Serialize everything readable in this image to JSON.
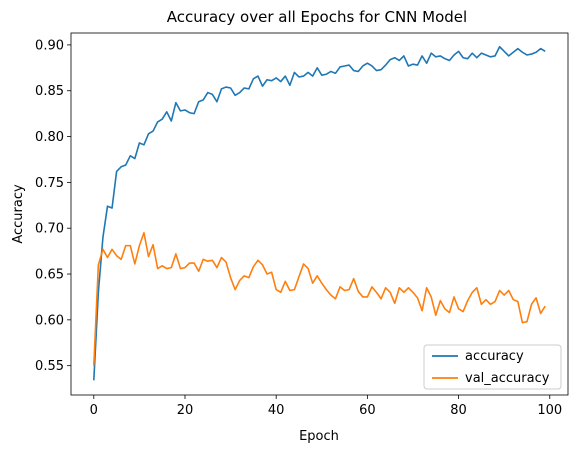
{
  "chart_data": {
    "type": "line",
    "title": "Accuracy over all Epochs for CNN Model",
    "xlabel": "Epoch",
    "ylabel": "Accuracy",
    "xlim": [
      -5,
      104
    ],
    "ylim": [
      0.518,
      0.913
    ],
    "xticks": [
      0,
      20,
      40,
      60,
      80,
      100
    ],
    "yticks": [
      0.55,
      0.6,
      0.65,
      0.7,
      0.75,
      0.8,
      0.85,
      0.9
    ],
    "ytick_labels": [
      "0.55",
      "0.60",
      "0.65",
      "0.70",
      "0.75",
      "0.80",
      "0.85",
      "0.90"
    ],
    "grid": false,
    "legend_position": "bottom-right",
    "x": [
      0,
      1,
      2,
      3,
      4,
      5,
      6,
      7,
      8,
      9,
      10,
      11,
      12,
      13,
      14,
      15,
      16,
      17,
      18,
      19,
      20,
      21,
      22,
      23,
      24,
      25,
      26,
      27,
      28,
      29,
      30,
      31,
      32,
      33,
      34,
      35,
      36,
      37,
      38,
      39,
      40,
      41,
      42,
      43,
      44,
      45,
      46,
      47,
      48,
      49,
      50,
      51,
      52,
      53,
      54,
      55,
      56,
      57,
      58,
      59,
      60,
      61,
      62,
      63,
      64,
      65,
      66,
      67,
      68,
      69,
      70,
      71,
      72,
      73,
      74,
      75,
      76,
      77,
      78,
      79,
      80,
      81,
      82,
      83,
      84,
      85,
      86,
      87,
      88,
      89,
      90,
      91,
      92,
      93,
      94,
      95,
      96,
      97,
      98,
      99
    ],
    "series": [
      {
        "name": "accuracy",
        "color": "#1f77b4",
        "values": [
          0.534,
          0.63,
          0.69,
          0.724,
          0.722,
          0.762,
          0.767,
          0.769,
          0.779,
          0.776,
          0.793,
          0.791,
          0.803,
          0.806,
          0.816,
          0.819,
          0.827,
          0.817,
          0.837,
          0.828,
          0.829,
          0.826,
          0.825,
          0.838,
          0.84,
          0.848,
          0.846,
          0.838,
          0.852,
          0.854,
          0.853,
          0.845,
          0.848,
          0.853,
          0.852,
          0.863,
          0.866,
          0.855,
          0.862,
          0.861,
          0.864,
          0.86,
          0.866,
          0.856,
          0.87,
          0.865,
          0.866,
          0.87,
          0.866,
          0.875,
          0.867,
          0.868,
          0.871,
          0.869,
          0.876,
          0.877,
          0.878,
          0.872,
          0.871,
          0.877,
          0.88,
          0.877,
          0.872,
          0.873,
          0.878,
          0.884,
          0.886,
          0.883,
          0.888,
          0.877,
          0.879,
          0.878,
          0.888,
          0.88,
          0.891,
          0.887,
          0.888,
          0.885,
          0.883,
          0.889,
          0.893,
          0.886,
          0.885,
          0.891,
          0.886,
          0.891,
          0.889,
          0.887,
          0.888,
          0.898,
          0.893,
          0.888,
          0.892,
          0.896,
          0.892,
          0.889,
          0.89,
          0.892,
          0.896,
          0.893
        ]
      },
      {
        "name": "val_accuracy",
        "color": "#ff7f0e",
        "values": [
          0.55,
          0.66,
          0.677,
          0.668,
          0.677,
          0.67,
          0.666,
          0.681,
          0.681,
          0.661,
          0.681,
          0.695,
          0.669,
          0.682,
          0.656,
          0.659,
          0.656,
          0.657,
          0.672,
          0.656,
          0.657,
          0.662,
          0.662,
          0.653,
          0.666,
          0.664,
          0.665,
          0.657,
          0.668,
          0.663,
          0.646,
          0.633,
          0.643,
          0.648,
          0.646,
          0.658,
          0.665,
          0.66,
          0.65,
          0.652,
          0.633,
          0.63,
          0.642,
          0.632,
          0.633,
          0.647,
          0.661,
          0.656,
          0.64,
          0.648,
          0.64,
          0.633,
          0.627,
          0.623,
          0.636,
          0.632,
          0.633,
          0.645,
          0.631,
          0.625,
          0.625,
          0.636,
          0.63,
          0.623,
          0.635,
          0.63,
          0.618,
          0.635,
          0.63,
          0.635,
          0.63,
          0.624,
          0.61,
          0.635,
          0.625,
          0.605,
          0.621,
          0.612,
          0.608,
          0.625,
          0.612,
          0.609,
          0.621,
          0.63,
          0.635,
          0.617,
          0.622,
          0.617,
          0.62,
          0.632,
          0.627,
          0.632,
          0.622,
          0.62,
          0.597,
          0.598,
          0.617,
          0.624,
          0.607,
          0.615
        ]
      }
    ]
  }
}
